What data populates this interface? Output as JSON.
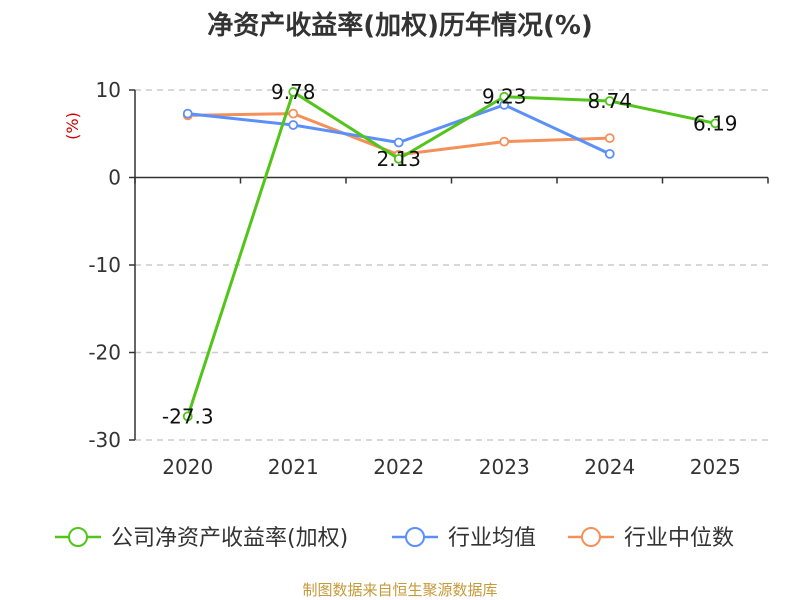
{
  "chart_data": {
    "type": "line",
    "title": "净资产收益率(加权)历年情况(%)",
    "ylabel": "(%)",
    "xlabel": "",
    "categories": [
      "2020",
      "2021",
      "2022",
      "2023",
      "2024",
      "2025"
    ],
    "ylim": [
      -30,
      10
    ],
    "yticks": [
      10,
      0,
      -10,
      -20,
      -30
    ],
    "grid": true,
    "legend_position": "bottom",
    "series": [
      {
        "name": "公司净资产收益率(加权)",
        "color": "#52c41a",
        "values": [
          -27.3,
          9.78,
          2.13,
          9.23,
          8.74,
          6.19
        ],
        "labels": [
          "-27.3",
          "9.78",
          "2.13",
          "9.23",
          "8.74",
          "6.19"
        ]
      },
      {
        "name": "行业均值",
        "color": "#5b8ff9",
        "values": [
          7.3,
          6.0,
          4.0,
          8.3,
          2.7,
          null
        ]
      },
      {
        "name": "行业中位数",
        "color": "#f4905a",
        "values": [
          7.1,
          7.3,
          2.6,
          4.1,
          4.5,
          null
        ]
      }
    ],
    "source": "制图数据来自恒生聚源数据库"
  }
}
